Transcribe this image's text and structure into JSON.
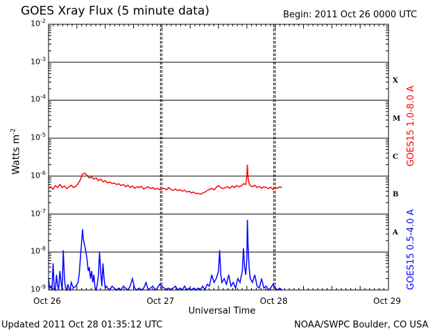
{
  "header": {
    "title": "GOES Xray Flux (5 minute data)",
    "begin": "Begin:  2011 Oct 26 0000 UTC"
  },
  "footer": {
    "updated": "Updated 2011 Oct 28 01:35:12 UTC",
    "credit": "NOAA/SWPC Boulder, CO USA"
  },
  "chart_data": {
    "type": "line",
    "title": "GOES Xray Flux (5 minute data)",
    "xlabel": "Universal Time",
    "ylabel": "Watts m",
    "ylabel_exp": "-2",
    "yscale": "log",
    "ylim": [
      1e-09,
      0.01
    ],
    "xlim_days": [
      0,
      3
    ],
    "x_ticks": [
      {
        "day": 0,
        "label": "Oct 26"
      },
      {
        "day": 1,
        "label": "Oct 27"
      },
      {
        "day": 2,
        "label": "Oct 28"
      },
      {
        "day": 3,
        "label": "Oct 29"
      }
    ],
    "y_ticks": [
      {
        "exp": -9,
        "label": "10",
        "sup": "-9"
      },
      {
        "exp": -8,
        "label": "10",
        "sup": "-8"
      },
      {
        "exp": -7,
        "label": "10",
        "sup": "-7"
      },
      {
        "exp": -6,
        "label": "10",
        "sup": "-6"
      },
      {
        "exp": -5,
        "label": "10",
        "sup": "-5"
      },
      {
        "exp": -4,
        "label": "10",
        "sup": "-4"
      },
      {
        "exp": -3,
        "label": "10",
        "sup": "-3"
      },
      {
        "exp": -2,
        "label": "10",
        "sup": "-2"
      }
    ],
    "flare_classes": [
      {
        "label": "X",
        "exp": -3.5
      },
      {
        "label": "M",
        "exp": -4.5
      },
      {
        "label": "C",
        "exp": -5.5
      },
      {
        "label": "B",
        "exp": -6.5
      },
      {
        "label": "A",
        "exp": -7.5
      }
    ],
    "grid": true,
    "colors": {
      "long": "#ff0000",
      "short": "#0000ff",
      "grid": "#000000"
    },
    "series": [
      {
        "name": "GOES15 1.0-8.0 A",
        "color": "#ff0000",
        "points": [
          [
            0.0,
            -6.32
          ],
          [
            0.02,
            -6.28
          ],
          [
            0.04,
            -6.35
          ],
          [
            0.06,
            -6.25
          ],
          [
            0.08,
            -6.3
          ],
          [
            0.1,
            -6.22
          ],
          [
            0.12,
            -6.3
          ],
          [
            0.14,
            -6.26
          ],
          [
            0.16,
            -6.33
          ],
          [
            0.18,
            -6.28
          ],
          [
            0.2,
            -6.24
          ],
          [
            0.22,
            -6.3
          ],
          [
            0.24,
            -6.27
          ],
          [
            0.26,
            -6.2
          ],
          [
            0.28,
            -6.1
          ],
          [
            0.3,
            -5.95
          ],
          [
            0.32,
            -5.92
          ],
          [
            0.34,
            -5.98
          ],
          [
            0.36,
            -6.05
          ],
          [
            0.38,
            -6.02
          ],
          [
            0.4,
            -6.08
          ],
          [
            0.42,
            -6.05
          ],
          [
            0.44,
            -6.12
          ],
          [
            0.46,
            -6.08
          ],
          [
            0.48,
            -6.15
          ],
          [
            0.5,
            -6.12
          ],
          [
            0.52,
            -6.18
          ],
          [
            0.54,
            -6.15
          ],
          [
            0.56,
            -6.2
          ],
          [
            0.58,
            -6.18
          ],
          [
            0.6,
            -6.22
          ],
          [
            0.62,
            -6.2
          ],
          [
            0.64,
            -6.25
          ],
          [
            0.66,
            -6.22
          ],
          [
            0.68,
            -6.28
          ],
          [
            0.7,
            -6.24
          ],
          [
            0.72,
            -6.3
          ],
          [
            0.74,
            -6.26
          ],
          [
            0.76,
            -6.32
          ],
          [
            0.78,
            -6.28
          ],
          [
            0.8,
            -6.3
          ],
          [
            0.82,
            -6.27
          ],
          [
            0.84,
            -6.34
          ],
          [
            0.86,
            -6.3
          ],
          [
            0.88,
            -6.28
          ],
          [
            0.9,
            -6.33
          ],
          [
            0.92,
            -6.3
          ],
          [
            0.94,
            -6.35
          ],
          [
            0.96,
            -6.32
          ],
          [
            0.98,
            -6.36
          ],
          [
            1.0,
            -6.34
          ],
          [
            1.02,
            -6.32
          ],
          [
            1.04,
            -6.36
          ],
          [
            1.06,
            -6.3
          ],
          [
            1.08,
            -6.35
          ],
          [
            1.1,
            -6.38
          ],
          [
            1.12,
            -6.34
          ],
          [
            1.14,
            -6.38
          ],
          [
            1.16,
            -6.36
          ],
          [
            1.18,
            -6.4
          ],
          [
            1.2,
            -6.37
          ],
          [
            1.22,
            -6.42
          ],
          [
            1.24,
            -6.4
          ],
          [
            1.26,
            -6.44
          ],
          [
            1.28,
            -6.42
          ],
          [
            1.3,
            -6.46
          ],
          [
            1.32,
            -6.45
          ],
          [
            1.34,
            -6.48
          ],
          [
            1.36,
            -6.45
          ],
          [
            1.38,
            -6.42
          ],
          [
            1.4,
            -6.38
          ],
          [
            1.42,
            -6.35
          ],
          [
            1.44,
            -6.32
          ],
          [
            1.46,
            -6.36
          ],
          [
            1.48,
            -6.3
          ],
          [
            1.5,
            -6.25
          ],
          [
            1.52,
            -6.3
          ],
          [
            1.54,
            -6.33
          ],
          [
            1.56,
            -6.3
          ],
          [
            1.58,
            -6.28
          ],
          [
            1.6,
            -6.32
          ],
          [
            1.62,
            -6.26
          ],
          [
            1.64,
            -6.3
          ],
          [
            1.66,
            -6.25
          ],
          [
            1.68,
            -6.28
          ],
          [
            1.7,
            -6.26
          ],
          [
            1.72,
            -6.2
          ],
          [
            1.74,
            -6.22
          ],
          [
            1.75,
            -5.98
          ],
          [
            1.755,
            -5.7
          ],
          [
            1.76,
            -6.05
          ],
          [
            1.77,
            -6.2
          ],
          [
            1.78,
            -6.25
          ],
          [
            1.8,
            -6.28
          ],
          [
            1.82,
            -6.24
          ],
          [
            1.84,
            -6.3
          ],
          [
            1.86,
            -6.27
          ],
          [
            1.88,
            -6.32
          ],
          [
            1.9,
            -6.28
          ],
          [
            1.92,
            -6.3
          ],
          [
            1.94,
            -6.33
          ],
          [
            1.96,
            -6.29
          ],
          [
            1.98,
            -6.35
          ],
          [
            2.0,
            -6.3
          ],
          [
            2.02,
            -6.32
          ],
          [
            2.04,
            -6.28
          ],
          [
            2.06,
            -6.3
          ]
        ]
      },
      {
        "name": "GOES15 0.5-4.0 A",
        "color": "#0000ff",
        "points": [
          [
            0.0,
            -8.7
          ],
          [
            0.01,
            -8.95
          ],
          [
            0.02,
            -8.9
          ],
          [
            0.03,
            -9.0
          ],
          [
            0.04,
            -8.3
          ],
          [
            0.05,
            -8.95
          ],
          [
            0.06,
            -9.0
          ],
          [
            0.07,
            -8.6
          ],
          [
            0.08,
            -8.9
          ],
          [
            0.09,
            -8.95
          ],
          [
            0.1,
            -8.5
          ],
          [
            0.11,
            -8.8
          ],
          [
            0.12,
            -9.0
          ],
          [
            0.13,
            -7.95
          ],
          [
            0.14,
            -8.7
          ],
          [
            0.15,
            -8.95
          ],
          [
            0.16,
            -9.0
          ],
          [
            0.17,
            -8.85
          ],
          [
            0.18,
            -8.95
          ],
          [
            0.19,
            -9.0
          ],
          [
            0.2,
            -8.8
          ],
          [
            0.22,
            -8.95
          ],
          [
            0.24,
            -8.9
          ],
          [
            0.26,
            -8.8
          ],
          [
            0.27,
            -8.6
          ],
          [
            0.28,
            -8.2
          ],
          [
            0.29,
            -7.8
          ],
          [
            0.3,
            -7.4
          ],
          [
            0.305,
            -7.6
          ],
          [
            0.31,
            -7.7
          ],
          [
            0.32,
            -7.85
          ],
          [
            0.33,
            -8.0
          ],
          [
            0.34,
            -8.2
          ],
          [
            0.35,
            -8.5
          ],
          [
            0.36,
            -8.4
          ],
          [
            0.37,
            -8.7
          ],
          [
            0.38,
            -8.5
          ],
          [
            0.39,
            -8.8
          ],
          [
            0.4,
            -8.6
          ],
          [
            0.41,
            -8.95
          ],
          [
            0.42,
            -9.0
          ],
          [
            0.43,
            -8.85
          ],
          [
            0.44,
            -8.6
          ],
          [
            0.45,
            -8.0
          ],
          [
            0.46,
            -8.5
          ],
          [
            0.47,
            -8.9
          ],
          [
            0.48,
            -8.3
          ],
          [
            0.49,
            -8.7
          ],
          [
            0.5,
            -8.95
          ],
          [
            0.51,
            -8.9
          ],
          [
            0.52,
            -8.95
          ],
          [
            0.54,
            -9.0
          ],
          [
            0.56,
            -8.9
          ],
          [
            0.58,
            -8.95
          ],
          [
            0.6,
            -9.0
          ],
          [
            0.62,
            -8.95
          ],
          [
            0.64,
            -9.0
          ],
          [
            0.66,
            -8.9
          ],
          [
            0.68,
            -8.95
          ],
          [
            0.7,
            -9.0
          ],
          [
            0.72,
            -8.9
          ],
          [
            0.74,
            -8.7
          ],
          [
            0.76,
            -8.95
          ],
          [
            0.78,
            -9.0
          ],
          [
            0.8,
            -8.95
          ],
          [
            0.82,
            -9.0
          ],
          [
            0.84,
            -8.95
          ],
          [
            0.86,
            -8.8
          ],
          [
            0.88,
            -9.0
          ],
          [
            0.9,
            -8.95
          ],
          [
            0.92,
            -8.9
          ],
          [
            0.94,
            -9.0
          ],
          [
            0.96,
            -8.95
          ],
          [
            0.98,
            -8.85
          ],
          [
            1.0,
            -8.9
          ],
          [
            1.02,
            -8.95
          ],
          [
            1.04,
            -9.0
          ],
          [
            1.06,
            -8.95
          ],
          [
            1.08,
            -9.0
          ],
          [
            1.1,
            -8.95
          ],
          [
            1.12,
            -8.9
          ],
          [
            1.14,
            -9.0
          ],
          [
            1.16,
            -8.95
          ],
          [
            1.18,
            -9.0
          ],
          [
            1.2,
            -8.9
          ],
          [
            1.22,
            -9.0
          ],
          [
            1.24,
            -8.95
          ],
          [
            1.26,
            -9.0
          ],
          [
            1.28,
            -8.95
          ],
          [
            1.3,
            -9.0
          ],
          [
            1.32,
            -8.95
          ],
          [
            1.34,
            -9.0
          ],
          [
            1.36,
            -8.9
          ],
          [
            1.38,
            -9.0
          ],
          [
            1.4,
            -8.85
          ],
          [
            1.42,
            -8.9
          ],
          [
            1.44,
            -8.6
          ],
          [
            1.46,
            -8.8
          ],
          [
            1.48,
            -8.7
          ],
          [
            1.5,
            -8.5
          ],
          [
            1.51,
            -7.95
          ],
          [
            1.52,
            -8.6
          ],
          [
            1.53,
            -8.8
          ],
          [
            1.55,
            -8.7
          ],
          [
            1.57,
            -8.85
          ],
          [
            1.59,
            -8.6
          ],
          [
            1.61,
            -8.9
          ],
          [
            1.63,
            -8.8
          ],
          [
            1.65,
            -8.95
          ],
          [
            1.67,
            -8.7
          ],
          [
            1.69,
            -8.8
          ],
          [
            1.71,
            -8.5
          ],
          [
            1.72,
            -7.9
          ],
          [
            1.73,
            -8.4
          ],
          [
            1.74,
            -8.6
          ],
          [
            1.75,
            -8.2
          ],
          [
            1.755,
            -7.15
          ],
          [
            1.76,
            -7.8
          ],
          [
            1.77,
            -8.4
          ],
          [
            1.78,
            -8.7
          ],
          [
            1.8,
            -8.8
          ],
          [
            1.82,
            -8.6
          ],
          [
            1.84,
            -8.9
          ],
          [
            1.86,
            -8.95
          ],
          [
            1.88,
            -8.7
          ],
          [
            1.9,
            -8.95
          ],
          [
            1.92,
            -8.9
          ],
          [
            1.94,
            -9.0
          ],
          [
            1.96,
            -8.95
          ],
          [
            1.98,
            -8.85
          ],
          [
            2.0,
            -8.95
          ],
          [
            2.02,
            -9.0
          ],
          [
            2.04,
            -8.95
          ],
          [
            2.06,
            -9.0
          ]
        ]
      }
    ]
  }
}
